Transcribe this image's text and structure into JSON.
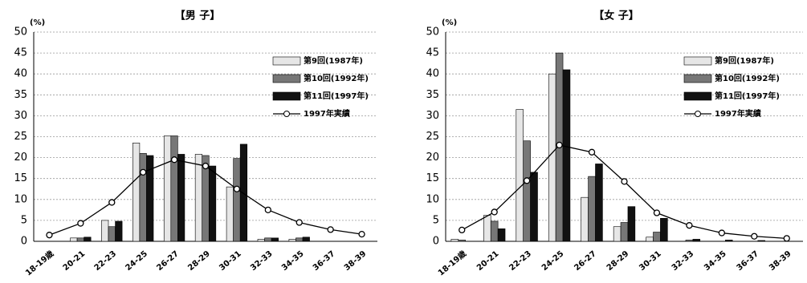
{
  "chart_data": [
    {
      "type": "bar",
      "title": "【男 子】",
      "ylabel": "(%)",
      "categories": [
        "18-19歳",
        "20-21",
        "22-23",
        "24-25",
        "26-27",
        "28-29",
        "30-31",
        "32-33",
        "34-35",
        "36-37",
        "38-39"
      ],
      "series": [
        {
          "name": "第9回(1987年)",
          "color": "#e6e6e6",
          "values": [
            0,
            0.8,
            5,
            23.5,
            25.2,
            20.8,
            13,
            0.5,
            0.5,
            0,
            0
          ]
        },
        {
          "name": "第10回(1992年)",
          "color": "#777777",
          "values": [
            0,
            0.8,
            3.5,
            21,
            25.2,
            20.5,
            19.8,
            0.8,
            0.8,
            0,
            0
          ]
        },
        {
          "name": "第11回(1997年)",
          "color": "#111111",
          "values": [
            0,
            1,
            4.8,
            20.5,
            20.8,
            18,
            23.2,
            0.8,
            1,
            0,
            0
          ]
        },
        {
          "name": "1997年実績",
          "color": "#000000",
          "type": "line",
          "values": [
            1.5,
            4.3,
            9.3,
            16.5,
            19.5,
            18,
            12.5,
            7.5,
            4.5,
            2.8,
            1.7
          ]
        }
      ],
      "ylim": [
        0,
        50
      ],
      "yticks": [
        0,
        5,
        10,
        15,
        20,
        25,
        30,
        35,
        40,
        45,
        50
      ],
      "grid": true,
      "legend": "upper right"
    },
    {
      "type": "bar",
      "title": "【女 子】",
      "ylabel": "(%)",
      "categories": [
        "18-19歳",
        "20-21",
        "22-23",
        "24-25",
        "26-27",
        "28-29",
        "30-31",
        "32-33",
        "34-35",
        "36-37",
        "38-39"
      ],
      "series": [
        {
          "name": "第9回(1987年)",
          "color": "#e6e6e6",
          "values": [
            0.5,
            6.2,
            31.5,
            40,
            10.5,
            3.5,
            1,
            0,
            0,
            0,
            0
          ]
        },
        {
          "name": "第10回(1992年)",
          "color": "#777777",
          "values": [
            0.3,
            4.8,
            24,
            45,
            15.5,
            4.5,
            2.2,
            0.3,
            0,
            0,
            0
          ]
        },
        {
          "name": "第11回(1997年)",
          "color": "#111111",
          "values": [
            0,
            3,
            16.5,
            41,
            18.5,
            8.3,
            5.5,
            0.5,
            0.3,
            0.2,
            0
          ]
        },
        {
          "name": "1997年実績",
          "color": "#000000",
          "type": "line",
          "values": [
            2.7,
            7,
            14.5,
            23,
            21.3,
            14.3,
            6.8,
            3.8,
            2,
            1.2,
            0.7
          ]
        }
      ],
      "ylim": [
        0,
        50
      ],
      "yticks": [
        0,
        5,
        10,
        15,
        20,
        25,
        30,
        35,
        40,
        45,
        50
      ],
      "grid": true,
      "legend": "upper right"
    }
  ]
}
